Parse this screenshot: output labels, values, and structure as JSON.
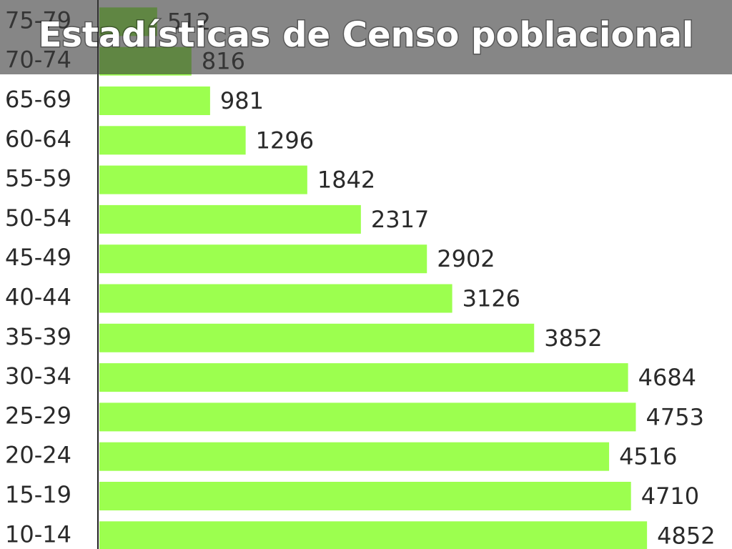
{
  "chart_data": {
    "type": "bar",
    "orientation": "horizontal",
    "title": "Estadísticas de Censo poblacional",
    "categories": [
      "75-79",
      "70-74",
      "65-69",
      "60-64",
      "55-59",
      "50-54",
      "45-49",
      "40-44",
      "35-39",
      "30-34",
      "25-29",
      "20-24",
      "15-19",
      "10-14"
    ],
    "values": [
      512,
      816,
      981,
      1296,
      1842,
      2317,
      2902,
      3126,
      3852,
      4684,
      4753,
      4516,
      4710,
      4852
    ],
    "color": "#9cff4f"
  }
}
